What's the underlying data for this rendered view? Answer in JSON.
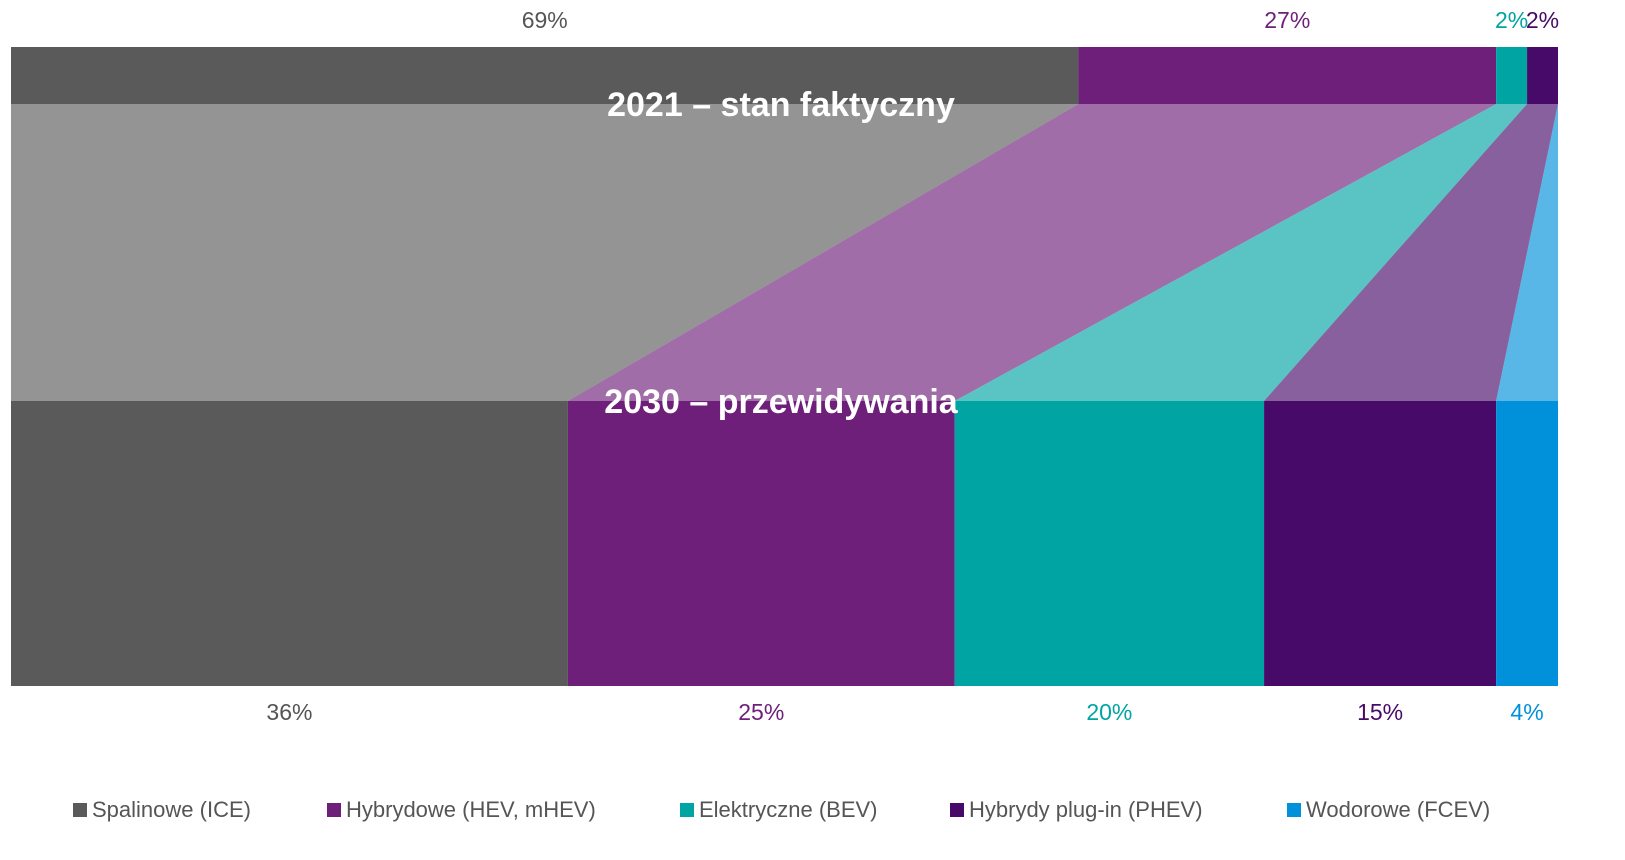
{
  "chart_data": {
    "type": "bar",
    "orientation": "horizontal",
    "stacked": true,
    "categories": [
      "2021 – stan faktyczny",
      "2030 – przewidywania"
    ],
    "xlim": [
      0,
      100
    ],
    "legend": "bottom",
    "series": [
      {
        "name": "Spalinowe (ICE)",
        "color": "#5a5a5a",
        "values": [
          69,
          36
        ],
        "value_labels": [
          "69%",
          "36%"
        ]
      },
      {
        "name": "Hybrydowe (HEV, mHEV)",
        "color": "#6d1f7a",
        "values": [
          27,
          25
        ],
        "value_labels": [
          "27%",
          "25%"
        ]
      },
      {
        "name": "Elektryczne (BEV)",
        "color": "#00a5a3",
        "values": [
          2,
          20
        ],
        "value_labels": [
          "2%",
          "20%"
        ]
      },
      {
        "name": "Hybrydy plug-in (PHEV)",
        "color": "#470a68",
        "values": [
          2,
          15
        ],
        "value_labels": [
          "2%",
          "15%"
        ]
      },
      {
        "name": "Wodorowe (FCEV)",
        "color": "#0091da",
        "values": [
          0,
          4
        ],
        "value_labels": [
          null,
          "4%"
        ]
      }
    ]
  }
}
